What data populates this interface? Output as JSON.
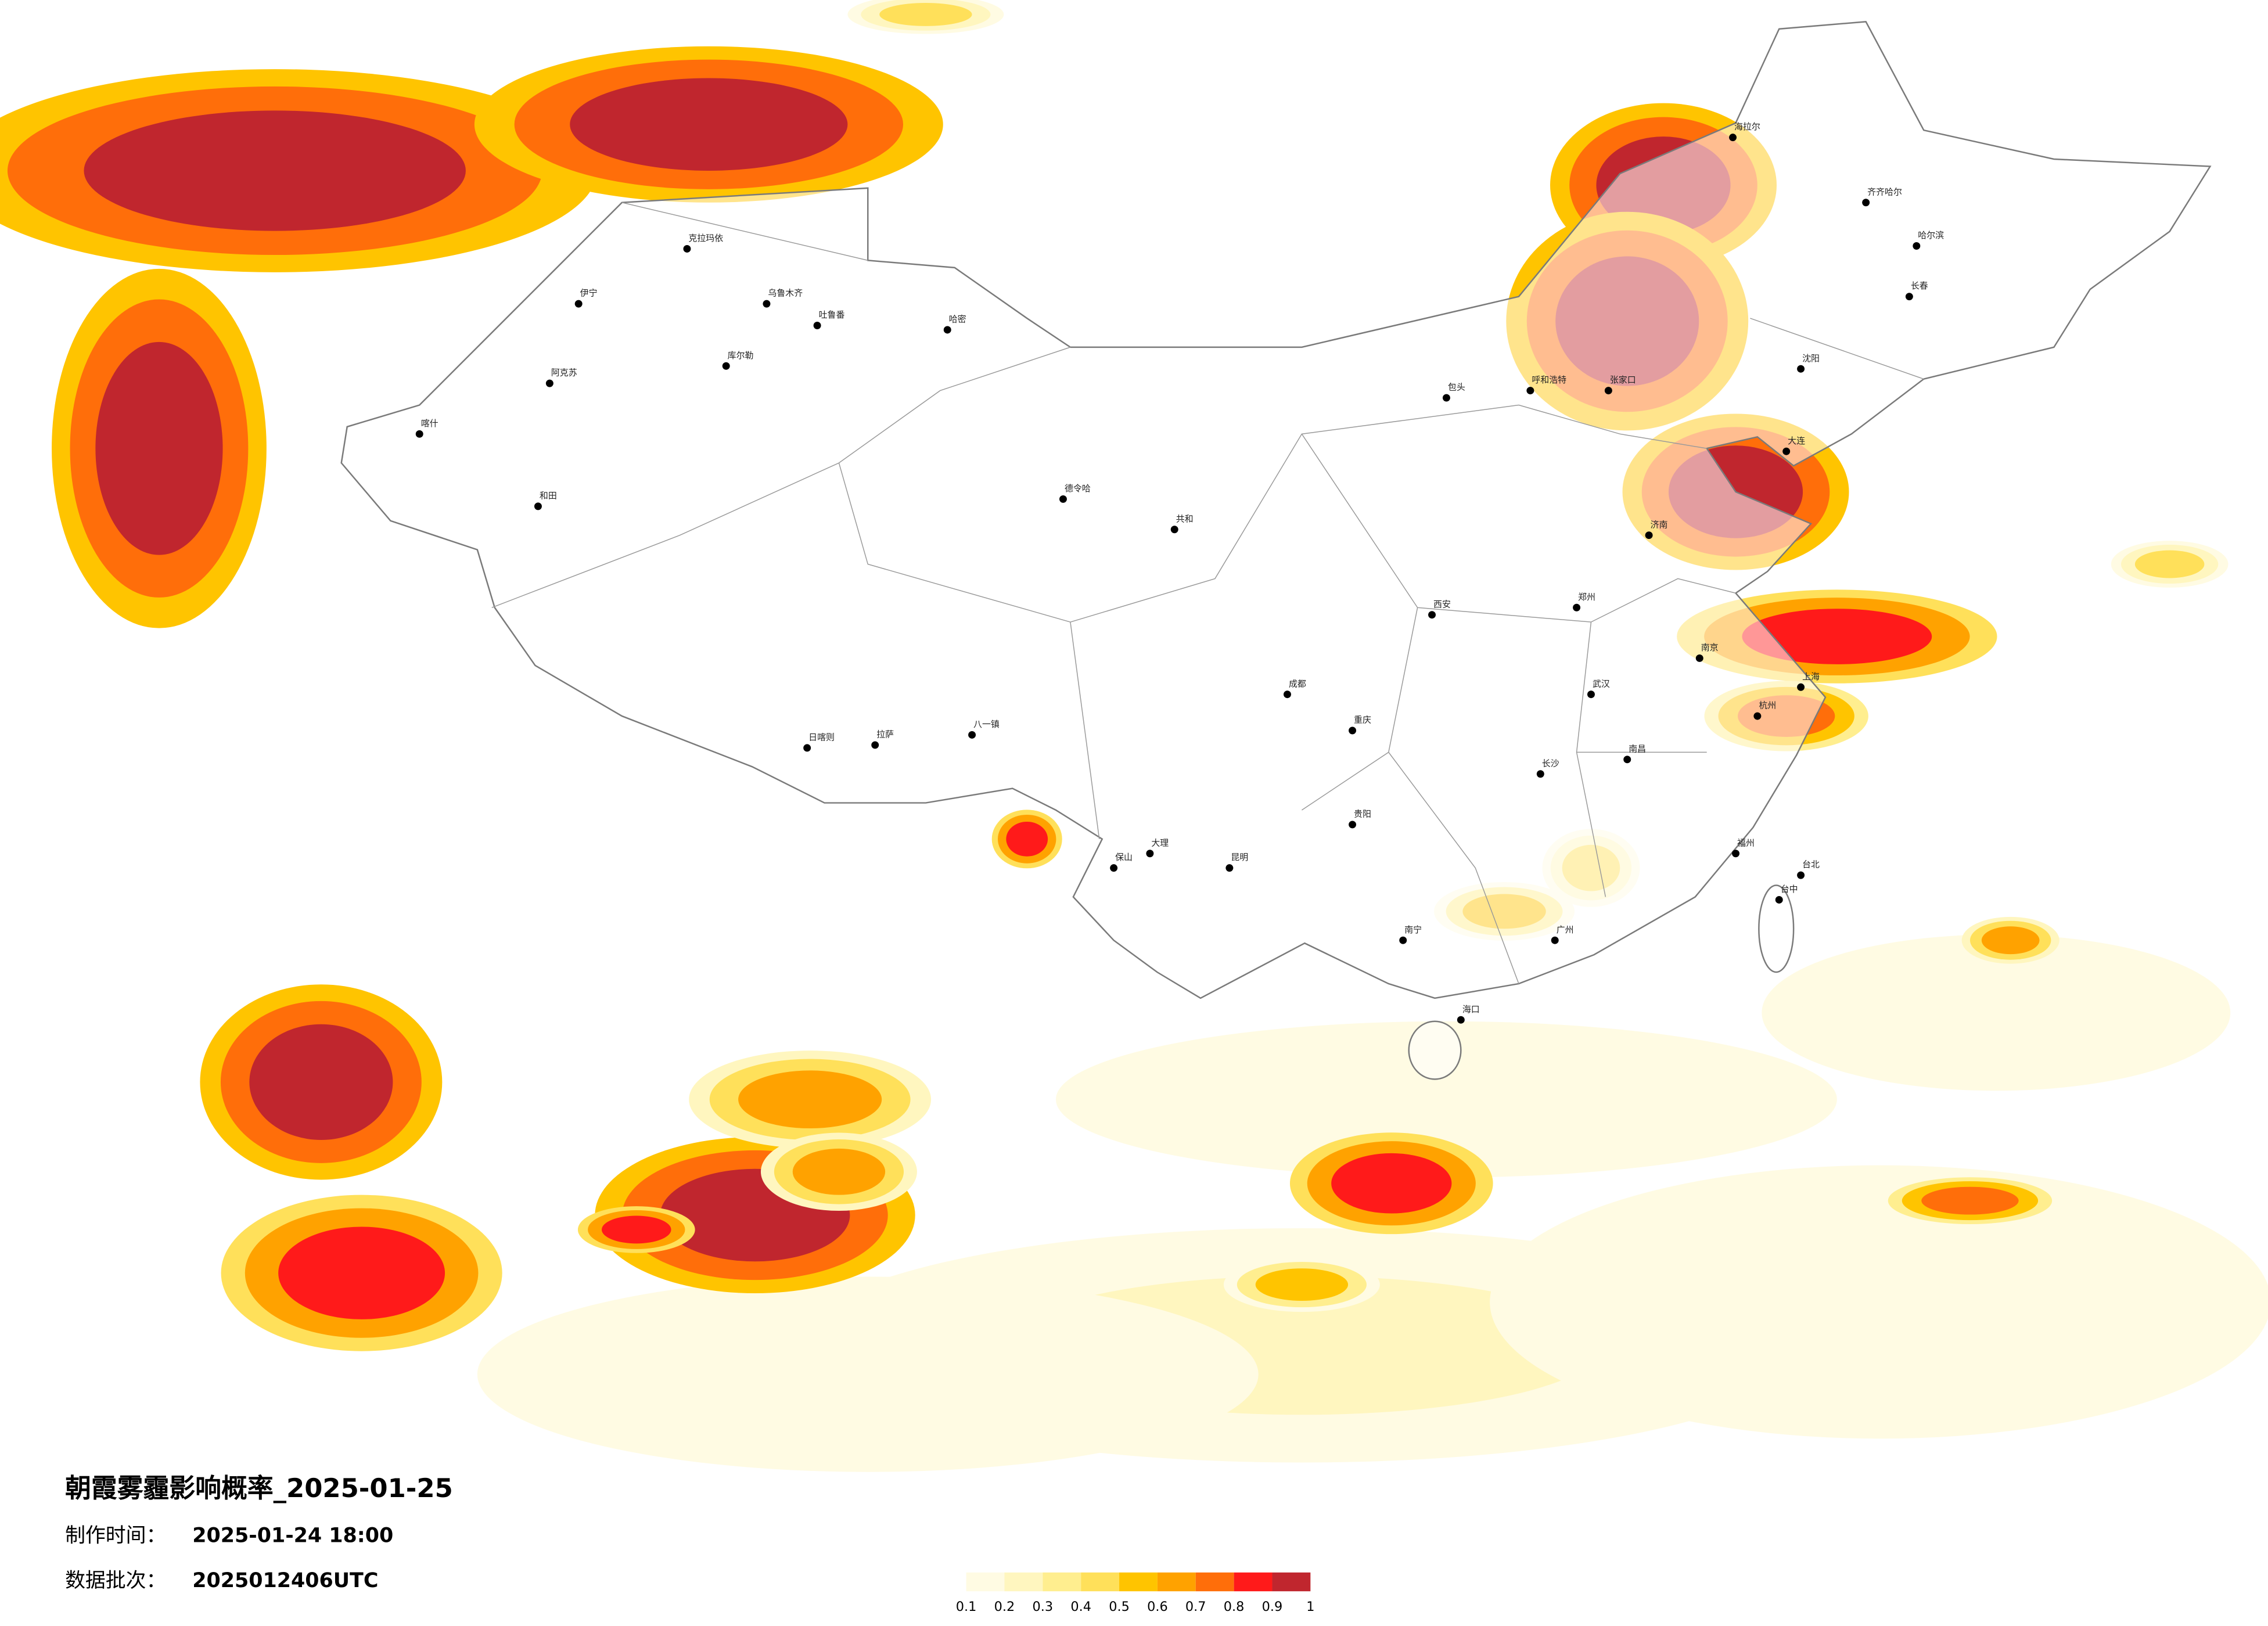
{
  "title": "朝霞雾霾影响概率_2025-01-25",
  "meta": {
    "made_label": "制作时间：",
    "made_time": "2025-01-24 18:00",
    "batch_label": "数据批次：",
    "batch": "2025012406UTC"
  },
  "legend": {
    "colors": [
      "#fffbe3",
      "#fff6bf",
      "#ffee8f",
      "#ffe05a",
      "#ffc400",
      "#ffa200",
      "#ff6e0a",
      "#ff1a1a",
      "#c0262e"
    ],
    "ticks": [
      0.1,
      0.2,
      0.3,
      0.4,
      0.5,
      0.6,
      0.7,
      0.8,
      0.9,
      1
    ]
  },
  "cities": [
    "克拉玛依",
    "伊宁",
    "阿克苏",
    "喀什",
    "和田",
    "乌鲁木齐",
    "吐鲁番",
    "哈密",
    "库尔勒",
    "拉萨",
    "日喀则",
    "德令哈",
    "共和",
    "呼和浩特",
    "包头",
    "张家口",
    "海拉尔",
    "齐齐哈尔",
    "哈尔滨",
    "长春",
    "沈阳",
    "大连",
    "济南",
    "郑州",
    "西安",
    "武汉",
    "南京",
    "上海",
    "杭州",
    "长沙",
    "南昌",
    "福州",
    "广州",
    "南宁",
    "海口",
    "昆明",
    "贵阳",
    "成都",
    "重庆",
    "台北",
    "台中",
    "大理",
    "保山",
    "八一镇"
  ]
}
